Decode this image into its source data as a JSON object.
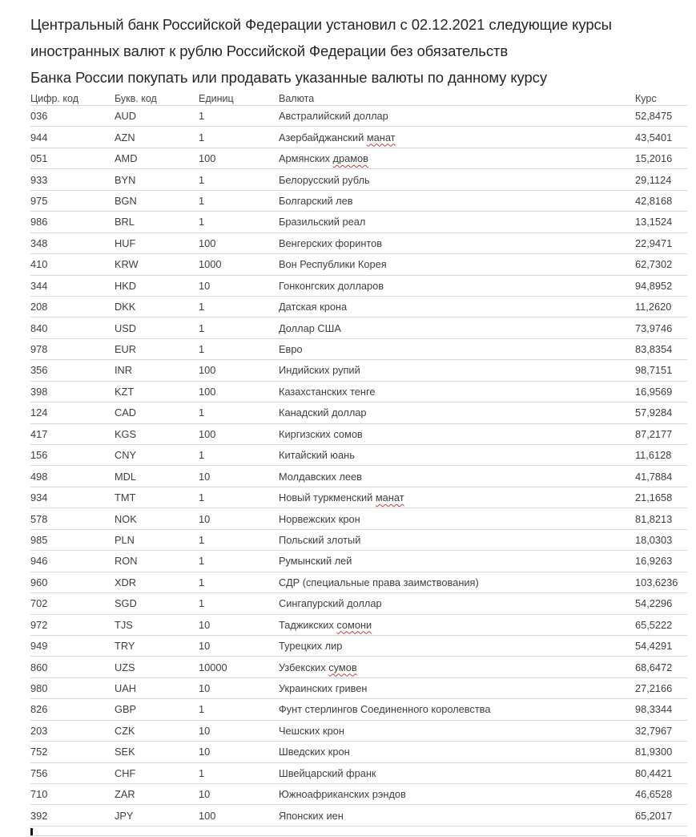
{
  "document": {
    "title_lines": [
      "Центральный банк Российской Федерации установил с 02.12.2021 следующие курсы",
      "иностранных валют к рублю Российской Федерации без обязательств",
      "Банка России покупать или продавать указанные валюты по данному курсу"
    ],
    "effective_date": "02.12.2021"
  },
  "colors": {
    "title_text": "#262626",
    "table_text": "#3e3e3e",
    "header_text": "#464646",
    "row_separator": "#d6d6d6",
    "spellcheck_squiggle": "#b3403a",
    "cursor": "#151515",
    "page_background": "#ffffff"
  },
  "table": {
    "columns": [
      {
        "label": "Цифр. код"
      },
      {
        "label": "Букв. код"
      },
      {
        "label": "Единиц"
      },
      {
        "label": "Валюта"
      },
      {
        "label": "Курс"
      }
    ],
    "rows": [
      {
        "num_code": "036",
        "char_code": "AUD",
        "units": "1",
        "currency": "Австралийский доллар",
        "flagged": null,
        "rate": "52,8475"
      },
      {
        "num_code": "944",
        "char_code": "AZN",
        "units": "1",
        "currency": "Азербайджанский манат",
        "flagged": "манат",
        "rate": "43,5401"
      },
      {
        "num_code": "051",
        "char_code": "AMD",
        "units": "100",
        "currency": "Армянских драмов",
        "flagged": "драмов",
        "rate": "15,2016"
      },
      {
        "num_code": "933",
        "char_code": "BYN",
        "units": "1",
        "currency": "Белорусский рубль",
        "flagged": null,
        "rate": "29,1124"
      },
      {
        "num_code": "975",
        "char_code": "BGN",
        "units": "1",
        "currency": "Болгарский лев",
        "flagged": null,
        "rate": "42,8168"
      },
      {
        "num_code": "986",
        "char_code": "BRL",
        "units": "1",
        "currency": "Бразильский реал",
        "flagged": null,
        "rate": "13,1524"
      },
      {
        "num_code": "348",
        "char_code": "HUF",
        "units": "100",
        "currency": "Венгерских форинтов",
        "flagged": null,
        "rate": "22,9471"
      },
      {
        "num_code": "410",
        "char_code": "KRW",
        "units": "1000",
        "currency": "Вон Республики Корея",
        "flagged": null,
        "rate": "62,7302"
      },
      {
        "num_code": "344",
        "char_code": "HKD",
        "units": "10",
        "currency": "Гонконгских долларов",
        "flagged": null,
        "rate": "94,8952"
      },
      {
        "num_code": "208",
        "char_code": "DKK",
        "units": "1",
        "currency": "Датская крона",
        "flagged": null,
        "rate": "11,2620"
      },
      {
        "num_code": "840",
        "char_code": "USD",
        "units": "1",
        "currency": "Доллар США",
        "flagged": null,
        "rate": "73,9746"
      },
      {
        "num_code": "978",
        "char_code": "EUR",
        "units": "1",
        "currency": "Евро",
        "flagged": null,
        "rate": "83,8354"
      },
      {
        "num_code": "356",
        "char_code": "INR",
        "units": "100",
        "currency": "Индийских рупий",
        "flagged": null,
        "rate": "98,7151"
      },
      {
        "num_code": "398",
        "char_code": "KZT",
        "units": "100",
        "currency": "Казахстанских тенге",
        "flagged": null,
        "rate": "16,9569"
      },
      {
        "num_code": "124",
        "char_code": "CAD",
        "units": "1",
        "currency": "Канадский доллар",
        "flagged": null,
        "rate": "57,9284"
      },
      {
        "num_code": "417",
        "char_code": "KGS",
        "units": "100",
        "currency": "Киргизских сомов",
        "flagged": null,
        "rate": "87,2177"
      },
      {
        "num_code": "156",
        "char_code": "CNY",
        "units": "1",
        "currency": "Китайский юань",
        "flagged": null,
        "rate": "11,6128"
      },
      {
        "num_code": "498",
        "char_code": "MDL",
        "units": "10",
        "currency": "Молдавских леев",
        "flagged": null,
        "rate": "41,7884"
      },
      {
        "num_code": "934",
        "char_code": "TMT",
        "units": "1",
        "currency": "Новый туркменский манат",
        "flagged": "манат",
        "rate": "21,1658"
      },
      {
        "num_code": "578",
        "char_code": "NOK",
        "units": "10",
        "currency": "Норвежских крон",
        "flagged": null,
        "rate": "81,8213"
      },
      {
        "num_code": "985",
        "char_code": "PLN",
        "units": "1",
        "currency": "Польский злотый",
        "flagged": null,
        "rate": "18,0303"
      },
      {
        "num_code": "946",
        "char_code": "RON",
        "units": "1",
        "currency": "Румынский лей",
        "flagged": null,
        "rate": "16,9263"
      },
      {
        "num_code": "960",
        "char_code": "XDR",
        "units": "1",
        "currency": "СДР (специальные права заимствования)",
        "flagged": null,
        "rate": "103,6236"
      },
      {
        "num_code": "702",
        "char_code": "SGD",
        "units": "1",
        "currency": "Сингапурский доллар",
        "flagged": null,
        "rate": "54,2296"
      },
      {
        "num_code": "972",
        "char_code": "TJS",
        "units": "10",
        "currency": "Таджикских сомони",
        "flagged": "сомони",
        "rate": "65,5222"
      },
      {
        "num_code": "949",
        "char_code": "TRY",
        "units": "10",
        "currency": "Турецких лир",
        "flagged": null,
        "rate": "54,4291"
      },
      {
        "num_code": "860",
        "char_code": "UZS",
        "units": "10000",
        "currency": "Узбекских сумов",
        "flagged": "сумов",
        "rate": "68,6472"
      },
      {
        "num_code": "980",
        "char_code": "UAH",
        "units": "10",
        "currency": "Украинских гривен",
        "flagged": null,
        "rate": "27,2166"
      },
      {
        "num_code": "826",
        "char_code": "GBP",
        "units": "1",
        "currency": "Фунт стерлингов Соединенного королевства",
        "flagged": null,
        "rate": "98,3344"
      },
      {
        "num_code": "203",
        "char_code": "CZK",
        "units": "10",
        "currency": "Чешских крон",
        "flagged": null,
        "rate": "32,7967"
      },
      {
        "num_code": "752",
        "char_code": "SEK",
        "units": "10",
        "currency": "Шведских крон",
        "flagged": null,
        "rate": "81,9300"
      },
      {
        "num_code": "756",
        "char_code": "CHF",
        "units": "1",
        "currency": "Швейцарский франк",
        "flagged": null,
        "rate": "80,4421"
      },
      {
        "num_code": "710",
        "char_code": "ZAR",
        "units": "10",
        "currency": "Южноафриканских рэндов",
        "flagged": null,
        "rate": "46,6528"
      },
      {
        "num_code": "392",
        "char_code": "JPY",
        "units": "100",
        "currency": "Японских иен",
        "flagged": null,
        "rate": "65,2017"
      }
    ]
  }
}
